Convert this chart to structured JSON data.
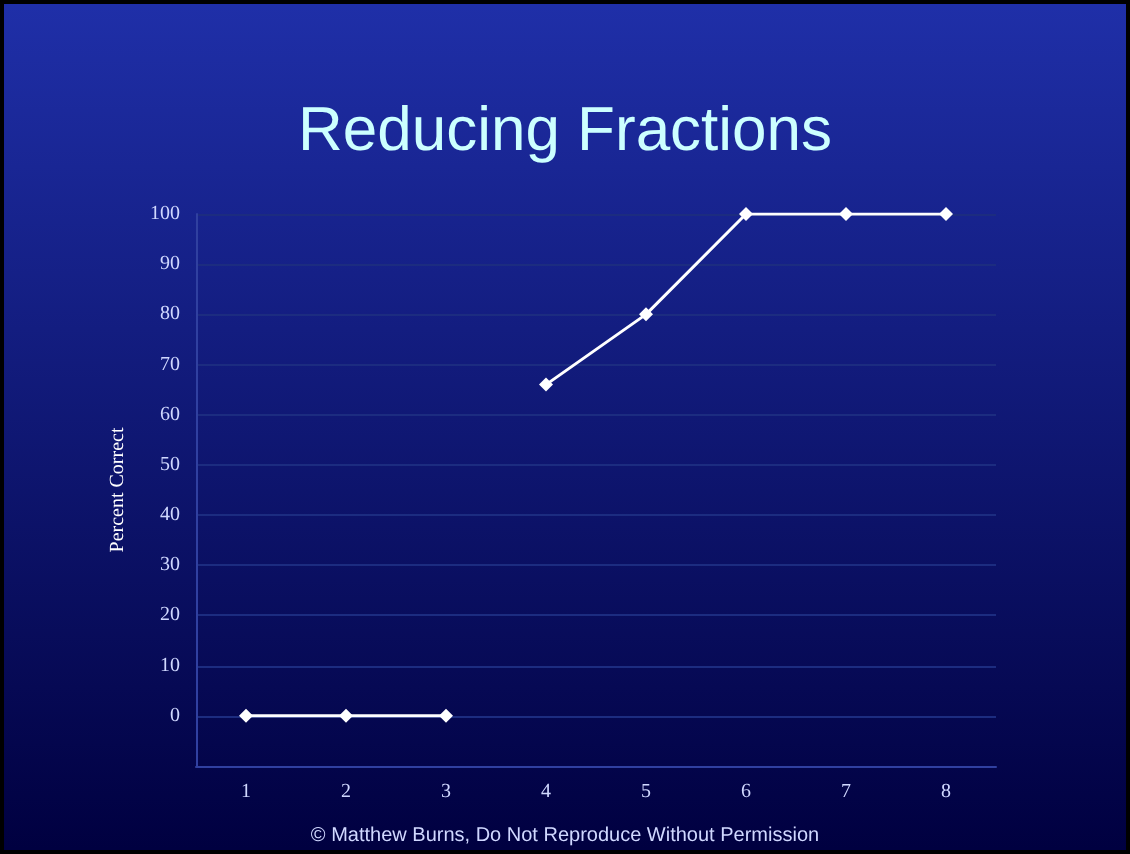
{
  "chart_data": {
    "type": "line",
    "title": "Reducing Fractions",
    "ylabel": "Percent Correct",
    "annotations": [
      "© Matthew Burns, Do Not Reproduce Without Permission"
    ],
    "categories": [
      "1",
      "2",
      "3",
      "4",
      "5",
      "6",
      "7",
      "8"
    ],
    "series": [
      {
        "color": "#ffffff",
        "values": [
          0,
          0,
          0,
          null,
          null,
          null,
          null,
          null
        ]
      },
      {
        "color": "#ffffff",
        "values": [
          null,
          null,
          null,
          66,
          80,
          100,
          100,
          100
        ]
      }
    ],
    "ylim": [
      -10,
      100
    ],
    "yticks": [
      0,
      10,
      20,
      30,
      40,
      50,
      60,
      70,
      80,
      90,
      100
    ],
    "grid": "y",
    "marker": "diamond",
    "line_style": "solid"
  }
}
